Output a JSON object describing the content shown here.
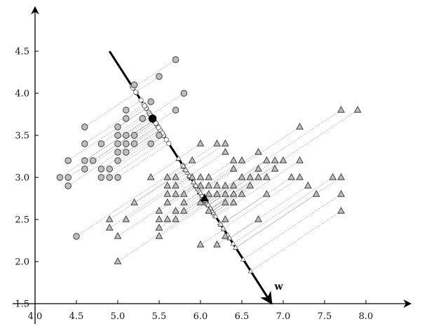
{
  "chart_data": {
    "type": "scatter",
    "title": "",
    "xlabel": "",
    "ylabel": "",
    "xlim": [
      4.0,
      8.2
    ],
    "ylim": [
      1.5,
      4.9
    ],
    "xticks": [
      "4.0",
      "4.5",
      "5.0",
      "5.5",
      "6.0",
      "6.5",
      "7.0",
      "7.5",
      "8.0"
    ],
    "yticks": [
      "1.5",
      "2.0",
      "2.5",
      "3.0",
      "3.5",
      "4.0",
      "4.5"
    ],
    "grid": false,
    "projection_vector": {
      "label": "w",
      "start": [
        4.9,
        4.5
      ],
      "end": [
        6.86,
        1.5
      ]
    },
    "means": {
      "class_circle": [
        5.42,
        3.7
      ],
      "class_triangle": [
        6.05,
        2.75
      ]
    },
    "series": [
      {
        "marker": "circle",
        "color": "#bdbdbd",
        "points": [
          [
            4.3,
            3.0
          ],
          [
            4.4,
            2.9
          ],
          [
            4.4,
            3.0
          ],
          [
            4.4,
            3.2
          ],
          [
            4.5,
            2.3
          ],
          [
            4.6,
            3.1
          ],
          [
            4.6,
            3.2
          ],
          [
            4.6,
            3.4
          ],
          [
            4.6,
            3.6
          ],
          [
            4.7,
            3.2
          ],
          [
            4.8,
            3.0
          ],
          [
            4.8,
            3.1
          ],
          [
            4.8,
            3.4
          ],
          [
            4.9,
            3.0
          ],
          [
            4.9,
            3.1
          ],
          [
            5.0,
            3.0
          ],
          [
            5.0,
            3.2
          ],
          [
            5.0,
            3.3
          ],
          [
            5.0,
            3.4
          ],
          [
            5.0,
            3.5
          ],
          [
            5.0,
            3.6
          ],
          [
            5.1,
            3.3
          ],
          [
            5.1,
            3.4
          ],
          [
            5.1,
            3.5
          ],
          [
            5.1,
            3.7
          ],
          [
            5.1,
            3.8
          ],
          [
            5.2,
            3.4
          ],
          [
            5.2,
            3.5
          ],
          [
            5.2,
            4.1
          ],
          [
            5.3,
            3.7
          ],
          [
            5.4,
            3.4
          ],
          [
            5.4,
            3.9
          ],
          [
            5.5,
            3.5
          ],
          [
            5.5,
            4.2
          ],
          [
            5.7,
            3.8
          ],
          [
            5.7,
            4.4
          ],
          [
            5.8,
            4.0
          ]
        ]
      },
      {
        "marker": "triangle",
        "color": "#bdbdbd",
        "points": [
          [
            4.9,
            2.4
          ],
          [
            4.9,
            2.5
          ],
          [
            5.0,
            2.0
          ],
          [
            5.0,
            2.3
          ],
          [
            5.1,
            2.5
          ],
          [
            5.2,
            2.7
          ],
          [
            5.4,
            3.0
          ],
          [
            5.5,
            2.3
          ],
          [
            5.5,
            2.4
          ],
          [
            5.5,
            2.5
          ],
          [
            5.5,
            2.6
          ],
          [
            5.6,
            2.5
          ],
          [
            5.6,
            2.7
          ],
          [
            5.6,
            2.8
          ],
          [
            5.6,
            2.9
          ],
          [
            5.6,
            3.0
          ],
          [
            5.7,
            2.5
          ],
          [
            5.7,
            2.6
          ],
          [
            5.7,
            2.8
          ],
          [
            5.7,
            2.9
          ],
          [
            5.7,
            3.0
          ],
          [
            5.8,
            2.6
          ],
          [
            5.8,
            2.7
          ],
          [
            5.8,
            2.8
          ],
          [
            5.9,
            3.0
          ],
          [
            5.9,
            3.2
          ],
          [
            6.0,
            2.2
          ],
          [
            6.0,
            2.7
          ],
          [
            6.0,
            2.9
          ],
          [
            6.0,
            3.0
          ],
          [
            6.0,
            3.4
          ],
          [
            6.1,
            2.6
          ],
          [
            6.1,
            2.8
          ],
          [
            6.1,
            2.9
          ],
          [
            6.1,
            3.0
          ],
          [
            6.2,
            2.2
          ],
          [
            6.2,
            2.8
          ],
          [
            6.2,
            2.9
          ],
          [
            6.2,
            3.4
          ],
          [
            6.3,
            2.3
          ],
          [
            6.3,
            2.5
          ],
          [
            6.3,
            2.7
          ],
          [
            6.3,
            2.8
          ],
          [
            6.3,
            2.9
          ],
          [
            6.3,
            3.3
          ],
          [
            6.3,
            3.4
          ],
          [
            6.4,
            2.7
          ],
          [
            6.4,
            2.8
          ],
          [
            6.4,
            2.9
          ],
          [
            6.4,
            3.1
          ],
          [
            6.4,
            3.2
          ],
          [
            6.5,
            2.8
          ],
          [
            6.5,
            3.0
          ],
          [
            6.5,
            3.2
          ],
          [
            6.6,
            2.9
          ],
          [
            6.6,
            3.0
          ],
          [
            6.7,
            2.5
          ],
          [
            6.7,
            3.0
          ],
          [
            6.7,
            3.1
          ],
          [
            6.7,
            3.3
          ],
          [
            6.8,
            2.8
          ],
          [
            6.8,
            3.0
          ],
          [
            6.8,
            3.2
          ],
          [
            6.9,
            3.1
          ],
          [
            6.9,
            3.2
          ],
          [
            7.0,
            3.2
          ],
          [
            7.1,
            3.0
          ],
          [
            7.2,
            3.0
          ],
          [
            7.2,
            3.2
          ],
          [
            7.2,
            3.6
          ],
          [
            7.3,
            2.9
          ],
          [
            7.4,
            2.8
          ],
          [
            7.6,
            3.0
          ],
          [
            7.7,
            2.6
          ],
          [
            7.7,
            2.8
          ],
          [
            7.7,
            3.0
          ],
          [
            7.7,
            3.8
          ],
          [
            7.9,
            3.8
          ]
        ]
      }
    ]
  }
}
